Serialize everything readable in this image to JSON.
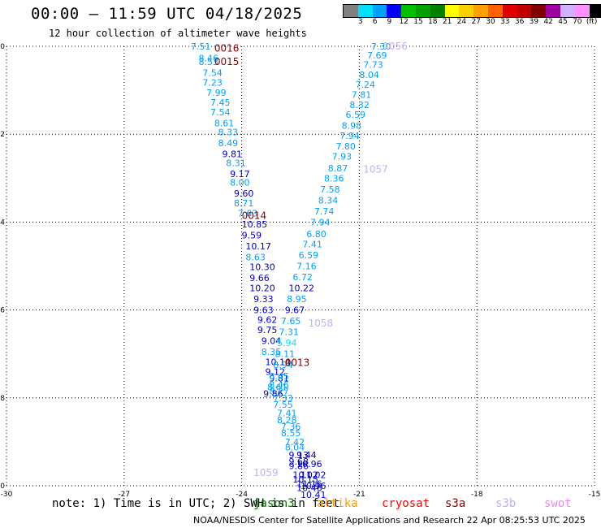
{
  "title": "00:00 – 11:59 UTC 04/18/2025",
  "subtitle": "12 hour collection of altimeter wave heights",
  "credit": "NOAA/NESDIS Center for Satellite Applications and Research   22 Apr 08:25:53 UTC 2025",
  "note": "note: 1) Time is in UTC; 2) SWH is in feet",
  "satellites": [
    {
      "name": "jason3",
      "color": "#007000"
    },
    {
      "name": "altika",
      "color": "#ff9900"
    },
    {
      "name": "cryosat",
      "color": "#ff0000"
    },
    {
      "name": "s3a",
      "color": "#8b0000"
    },
    {
      "name": "s3b",
      "color": "#c4b0f0"
    },
    {
      "name": "swot",
      "color": "#ee88ee"
    }
  ],
  "legend": {
    "labels": [
      "3",
      "6",
      "9",
      "12",
      "15",
      "18",
      "21",
      "24",
      "27",
      "30",
      "33",
      "36",
      "39",
      "42",
      "45",
      "70",
      "(ft)"
    ],
    "colors": [
      "#808080",
      "#00e0ff",
      "#00a0ff",
      "#0000ff",
      "#00c000",
      "#00a000",
      "#008000",
      "#ffff00",
      "#ffd000",
      "#ffa000",
      "#ff6000",
      "#e00000",
      "#c00000",
      "#800000",
      "#a000a0",
      "#d0b0ff",
      "#ff90ff",
      "#000000"
    ]
  },
  "chart_data": {
    "type": "scatter",
    "title": "00:00 – 11:59 UTC 04/18/2025",
    "subtitle": "12 hour collection of altimeter wave heights",
    "xlabel": "",
    "ylabel": "",
    "xlim": [
      -30,
      -15
    ],
    "ylim": [
      -50,
      -40
    ],
    "x_ticks": [
      "-30",
      "-27",
      "-24",
      "-21",
      "-18",
      "-15"
    ],
    "y_ticks": [
      "-40",
      "-42",
      "-44",
      "-46",
      "-48",
      "-50"
    ],
    "grid": true,
    "passes": [
      {
        "label": "0016",
        "x": -24.7,
        "y": -40.05,
        "color": "#8b0000"
      },
      {
        "label": "0015",
        "x": -24.7,
        "y": -40.35,
        "color": "#8b0000"
      },
      {
        "label": "0014",
        "x": -24.0,
        "y": -43.85,
        "color": "#8b0000"
      },
      {
        "label": "0013",
        "x": -22.9,
        "y": -47.2,
        "color": "#8b0000"
      },
      {
        "label": "1056",
        "x": -20.4,
        "y": -40.0,
        "color": "#c4b0f0"
      },
      {
        "label": "1057",
        "x": -20.9,
        "y": -42.8,
        "color": "#c4b0f0"
      },
      {
        "label": "1058",
        "x": -22.3,
        "y": -46.3,
        "color": "#c4b0f0"
      },
      {
        "label": "1059",
        "x": -23.7,
        "y": -49.7,
        "color": "#c4b0f0"
      }
    ],
    "swh_left_track": {
      "x": [
        -25.3,
        -25.1,
        -25.1,
        -25.0,
        -25.0,
        -24.9,
        -24.8,
        -24.8,
        -24.7,
        -24.6,
        -24.6,
        -24.5,
        -24.4,
        -24.3,
        -24.3,
        -24.2,
        -24.2,
        -24.1,
        -24.0,
        -24.0,
        -23.9,
        -23.9,
        -23.8,
        -23.8,
        -23.8,
        -23.7,
        -23.7,
        -23.6,
        -23.6,
        -23.5,
        -23.5,
        -23.4,
        -23.4,
        -23.3,
        -23.3,
        -23.3,
        -23.2,
        -23.2,
        -23.1,
        -23.1,
        -23.0,
        -23.0,
        -22.9,
        -22.9,
        -22.8,
        -22.8,
        -22.8,
        -22.7,
        -22.7,
        -22.6,
        -22.6,
        -22.5
      ],
      "y": [
        -40.0,
        -40.27,
        -40.35,
        -40.6,
        -40.82,
        -41.05,
        -41.28,
        -41.5,
        -41.75,
        -41.95,
        -42.2,
        -42.45,
        -42.65,
        -42.9,
        -43.1,
        -43.35,
        -43.57,
        -43.8,
        -44.05,
        -44.3,
        -44.55,
        -44.8,
        -45.02,
        -45.27,
        -45.5,
        -45.75,
        -46.0,
        -46.22,
        -46.45,
        -46.7,
        -46.95,
        -47.18,
        -47.4,
        -47.55,
        -47.7,
        -47.85,
        -48.0,
        -48.15,
        -48.35,
        -48.5,
        -48.65,
        -48.8,
        -49.0,
        -49.12,
        -49.3,
        -49.45,
        -49.55,
        -49.75,
        -49.85,
        -49.95,
        -50.05,
        -50.2
      ],
      "values": [
        7.51,
        8.46,
        8.53,
        7.54,
        7.23,
        7.99,
        7.45,
        7.54,
        8.61,
        8.33,
        8.49,
        9.81,
        8.31,
        9.17,
        8.0,
        9.6,
        8.71,
        7.63,
        10.85,
        9.59,
        10.17,
        8.63,
        10.3,
        9.66,
        10.2,
        9.33,
        9.63,
        9.62,
        9.75,
        9.04,
        8.35,
        10.14,
        9.12,
        9.81,
        8.46,
        8.27,
        7.33,
        7.55,
        7.41,
        8.28,
        7.36,
        8.55,
        7.42,
        8.04,
        9.13,
        9.68,
        9.86,
        10.02,
        10.15,
        11.16,
        10.46,
        10.41
      ]
    },
    "swh_right_track": {
      "x": [
        -20.7,
        -20.8,
        -20.9,
        -21.0,
        -21.1,
        -21.2,
        -21.25,
        -21.35,
        -21.45,
        -21.5,
        -21.6,
        -21.7,
        -21.8,
        -21.9,
        -22.0,
        -22.05,
        -22.15,
        -22.25,
        -22.35,
        -22.45,
        -22.55,
        -22.6,
        -22.7,
        -22.8,
        -22.85,
        -22.9,
        -23.0,
        -23.05,
        -23.1,
        -23.15,
        -23.2,
        -23.3,
        -23.35,
        -23.45,
        -22.6,
        -22.6,
        -22.5,
        -22.5
      ],
      "y": [
        -40.0,
        -40.2,
        -40.42,
        -40.65,
        -40.87,
        -41.1,
        -41.33,
        -41.55,
        -41.8,
        -42.03,
        -42.27,
        -42.5,
        -42.77,
        -43.0,
        -43.25,
        -43.5,
        -43.75,
        -44.0,
        -44.27,
        -44.5,
        -44.75,
        -45.0,
        -45.25,
        -45.5,
        -45.75,
        -46.0,
        -46.25,
        -46.5,
        -46.75,
        -47.0,
        -47.25,
        -47.5,
        -47.75,
        -47.9,
        -49.3,
        -49.5,
        -49.75,
        -50.0
      ],
      "values": [
        7.3,
        7.69,
        7.73,
        8.04,
        7.24,
        7.81,
        8.32,
        6.59,
        8.98,
        7.94,
        7.8,
        7.93,
        8.87,
        8.36,
        7.58,
        8.34,
        7.74,
        7.94,
        6.8,
        7.41,
        6.59,
        7.16,
        6.72,
        10.22,
        8.95,
        9.67,
        7.65,
        7.31,
        5.94,
        8.11,
        8.94,
        8.45,
        8.61,
        9.86,
        9.44,
        10.96,
        11.02,
        10.96
      ]
    }
  }
}
